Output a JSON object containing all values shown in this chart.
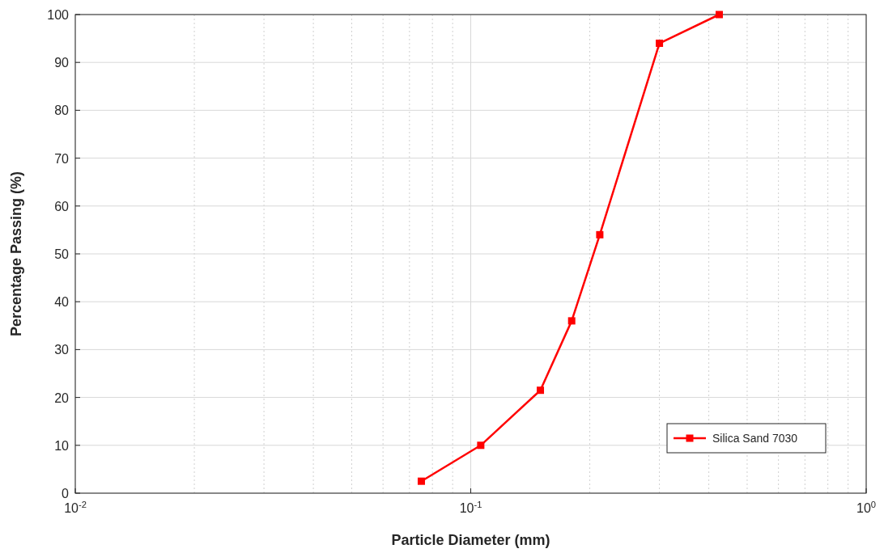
{
  "chart_data": {
    "type": "line",
    "xlabel": "Particle Diameter (mm)",
    "ylabel": "Percentage Passing (%)",
    "log": "x",
    "xlim": [
      0.01,
      1
    ],
    "xticks": [
      {
        "value": 0.01,
        "label": "10$^{-2}$"
      },
      {
        "value": 0.1,
        "label": "10$^{-1}$"
      },
      {
        "value": 1,
        "label": "10$^{0}$"
      }
    ],
    "ylim": [
      0,
      100
    ],
    "yticks": [
      0,
      10,
      20,
      30,
      40,
      50,
      60,
      70,
      80,
      90,
      100
    ],
    "grid": true,
    "legend": "bottom right",
    "marker": "square",
    "line_style": "solid",
    "series": [
      {
        "name": "Silica Sand 7030",
        "color": "#ff0000",
        "x": [
          0.075,
          0.106,
          0.15,
          0.18,
          0.212,
          0.3,
          0.425
        ],
        "values": [
          2.5,
          10,
          21.5,
          36,
          54,
          94,
          100
        ]
      }
    ]
  }
}
